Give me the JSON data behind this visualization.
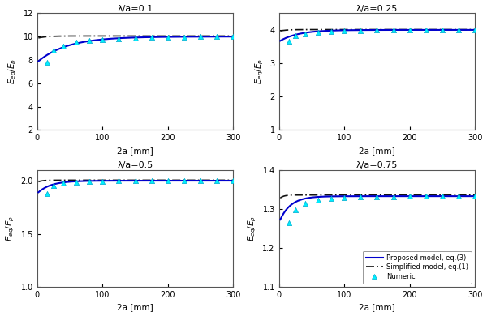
{
  "subplots": [
    {
      "title": "λ/a=0.1",
      "ylim": [
        2,
        12
      ],
      "yticks": [
        2,
        4,
        6,
        8,
        10,
        12
      ],
      "xlim": [
        0,
        300
      ],
      "xticks": [
        0,
        100,
        200,
        300
      ],
      "asymptote": 10.0,
      "simplified_asymptote": 10.05,
      "k_proposed": 0.022,
      "k_simplified": 0.08,
      "start_val": 7.8,
      "simplified_start": 9.85,
      "numeric_x": [
        15,
        25,
        40,
        60,
        80,
        100,
        125,
        150,
        175,
        200,
        225,
        250,
        275,
        300
      ],
      "numeric_y": [
        7.8,
        8.8,
        9.2,
        9.5,
        9.65,
        9.75,
        9.83,
        9.88,
        9.92,
        9.95,
        9.97,
        9.98,
        9.99,
        10.0
      ]
    },
    {
      "title": "λ/a=0.25",
      "ylim": [
        1,
        4.5
      ],
      "yticks": [
        1,
        2,
        3,
        4
      ],
      "xlim": [
        0,
        300
      ],
      "xticks": [
        0,
        100,
        200,
        300
      ],
      "asymptote": 4.0,
      "simplified_asymptote": 4.01,
      "k_proposed": 0.035,
      "k_simplified": 0.1,
      "start_val": 3.65,
      "simplified_start": 3.96,
      "numeric_x": [
        15,
        25,
        40,
        60,
        80,
        100,
        125,
        150,
        175,
        200,
        225,
        250,
        275,
        300
      ],
      "numeric_y": [
        3.65,
        3.82,
        3.88,
        3.93,
        3.95,
        3.97,
        3.98,
        3.99,
        3.99,
        4.0,
        4.0,
        4.0,
        4.0,
        4.0
      ]
    },
    {
      "title": "λ/a=0.5",
      "ylim": [
        1,
        2.1
      ],
      "yticks": [
        1,
        1.5,
        2
      ],
      "xlim": [
        0,
        300
      ],
      "xticks": [
        0,
        100,
        200,
        300
      ],
      "asymptote": 2.0,
      "simplified_asymptote": 2.005,
      "k_proposed": 0.05,
      "k_simplified": 0.15,
      "start_val": 1.88,
      "simplified_start": 1.985,
      "numeric_x": [
        15,
        25,
        40,
        60,
        80,
        100,
        125,
        150,
        175,
        200,
        225,
        250,
        275,
        300
      ],
      "numeric_y": [
        1.88,
        1.955,
        1.975,
        1.985,
        1.991,
        1.995,
        1.997,
        1.998,
        1.999,
        2.0,
        2.0,
        2.0,
        2.0,
        2.0
      ]
    },
    {
      "title": "λ/a=0.75",
      "ylim": [
        1.1,
        1.4
      ],
      "yticks": [
        1.1,
        1.2,
        1.3,
        1.4
      ],
      "xlim": [
        0,
        300
      ],
      "xticks": [
        0,
        100,
        200,
        300
      ],
      "asymptote": 1.333,
      "simplified_asymptote": 1.336,
      "k_proposed": 0.06,
      "k_simplified": 0.18,
      "start_val": 1.265,
      "simplified_start": 1.325,
      "numeric_x": [
        15,
        25,
        40,
        60,
        80,
        100,
        125,
        150,
        175,
        200,
        225,
        250,
        275,
        300
      ],
      "numeric_y": [
        1.265,
        1.298,
        1.315,
        1.323,
        1.327,
        1.329,
        1.331,
        1.332,
        1.332,
        1.333,
        1.333,
        1.333,
        1.333,
        1.333
      ]
    }
  ],
  "line_color": "#0000CD",
  "dash_color": "#111111",
  "marker_color": "#00EEFF",
  "marker_edge_color": "#00AACC",
  "xlabel": "2a [mm]",
  "legend_labels": [
    "Proposed model, eq.(3)",
    "Simplified model, eq.(1)",
    "Numeric"
  ],
  "bg_color": "#ffffff"
}
